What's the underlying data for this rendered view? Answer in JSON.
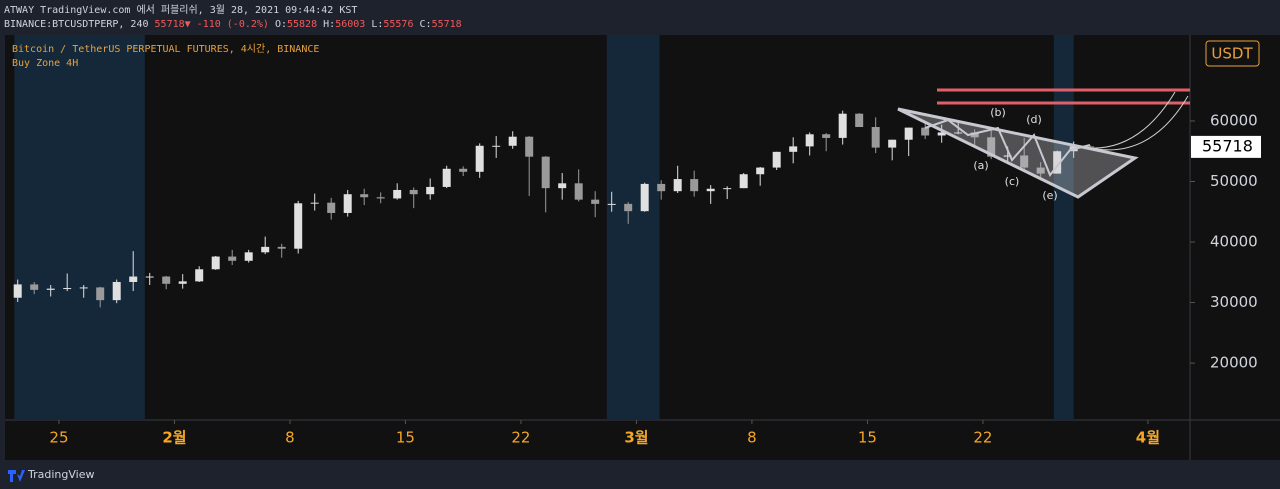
{
  "header": {
    "line1": "ATWAY TradingView.com 에서 퍼블리쉬, 3월 28, 2021 09:44:42 KST",
    "symbol": "BINANCE:BTCUSDTPERP, 240",
    "change": "55718▼ -110 (-0.2%)",
    "ohlc": [
      {
        "key": "O:",
        "value": "55828"
      },
      {
        "key": "H:",
        "value": "56003"
      },
      {
        "key": "L:",
        "value": "55576"
      },
      {
        "key": "C:",
        "value": "55718"
      }
    ]
  },
  "footer": {
    "brand": "TradingView"
  },
  "chart_data": {
    "type": "candlestick",
    "legend": [
      "Bitcoin / TetherUS PERPETUAL FUTURES, 4시간, BINANCE",
      "Buy Zone 4H"
    ],
    "currency": "USDT",
    "price_label": 55718,
    "up_color": "#e0e0e0",
    "down_color": "#9a9a9a",
    "zone_color": "#15283a",
    "annotations": [
      "(a)",
      "(b)",
      "(c)",
      "(d)",
      "(e)"
    ],
    "buy_zones": [
      [
        22.3,
        30.2
      ],
      [
        58.2,
        61.4
      ],
      [
        85.3,
        86.5
      ]
    ],
    "xlim": [
      21.73,
      93.55
    ],
    "xticks": [
      {
        "value": 25,
        "label": "25"
      },
      {
        "value": 32,
        "label": "2월"
      },
      {
        "value": 39,
        "label": "8"
      },
      {
        "value": 46,
        "label": "15"
      },
      {
        "value": 53,
        "label": "22"
      },
      {
        "value": 60,
        "label": "3월"
      },
      {
        "value": 67,
        "label": "8"
      },
      {
        "value": 74,
        "label": "15"
      },
      {
        "value": 81,
        "label": "22"
      },
      {
        "value": 91,
        "label": "4월"
      }
    ],
    "ylim": [
      10600,
      74200
    ],
    "yticks": [
      20000,
      30000,
      40000,
      50000,
      60000
    ],
    "x": [
      22,
      23,
      24,
      25,
      26,
      27,
      28,
      29,
      30,
      31,
      32,
      33,
      34,
      35,
      36,
      37,
      38,
      39,
      40,
      41,
      42,
      43,
      44,
      45,
      46,
      47,
      48,
      49,
      50,
      51,
      52,
      53,
      54,
      55,
      56,
      57,
      58,
      59,
      60,
      61,
      62,
      63,
      64,
      65,
      66,
      67,
      68,
      69,
      70,
      71,
      72,
      73,
      74,
      75,
      76,
      77,
      78,
      79,
      80,
      81,
      82,
      83,
      84,
      85,
      86,
      87
    ],
    "open": [
      30800,
      33000,
      32100,
      32300,
      32400,
      32500,
      30400,
      33400,
      34300,
      34300,
      33100,
      33500,
      35500,
      37600,
      36900,
      38300,
      39200,
      38900,
      46400,
      46500,
      44800,
      47900,
      47400,
      47200,
      48600,
      47900,
      49100,
      52100,
      51600,
      55900,
      55900,
      57400,
      54100,
      48900,
      49700,
      47000,
      46300,
      46300,
      45100,
      49600,
      48400,
      50400,
      48400,
      48800,
      48900,
      51200,
      52300,
      54900,
      55800,
      57800,
      57200,
      61200,
      59000,
      55600,
      56900,
      58900,
      57600,
      58100,
      58100,
      57300,
      54100,
      54300,
      52300,
      51300,
      55000,
      55800
    ],
    "high": [
      33800,
      33400,
      32900,
      34800,
      32900,
      32600,
      33800,
      38500,
      34900,
      34400,
      34700,
      36000,
      37700,
      38700,
      38700,
      40900,
      39700,
      46800,
      48000,
      47300,
      48600,
      48800,
      48200,
      49700,
      49000,
      50500,
      52600,
      52500,
      56300,
      57500,
      58300,
      57500,
      54200,
      51400,
      52000,
      48400,
      48300,
      46600,
      49800,
      50200,
      52600,
      51800,
      49400,
      49200,
      51400,
      52400,
      54900,
      57300,
      58100,
      58000,
      61700,
      61300,
      60600,
      56900,
      58900,
      60000,
      59400,
      59800,
      58600,
      58400,
      55800,
      57200,
      53200,
      55100,
      56600,
      56003
    ],
    "low": [
      30100,
      31400,
      31000,
      31900,
      30800,
      29200,
      29900,
      31900,
      32900,
      32200,
      32300,
      33400,
      35400,
      36200,
      36600,
      38000,
      37400,
      38100,
      45200,
      43700,
      44200,
      46100,
      46400,
      47000,
      45600,
      47000,
      48900,
      50900,
      50600,
      53900,
      55400,
      47600,
      44900,
      47000,
      46700,
      44100,
      45000,
      43000,
      45000,
      47000,
      48100,
      47500,
      46300,
      47100,
      48900,
      49300,
      51900,
      53000,
      54300,
      55000,
      56100,
      59000,
      54700,
      53500,
      54200,
      57000,
      56400,
      57800,
      55800,
      53700,
      53000,
      51700,
      50400,
      51300,
      53900,
      55576
    ],
    "close": [
      33000,
      32100,
      32300,
      32400,
      32500,
      30400,
      33400,
      34300,
      34300,
      33100,
      33500,
      35500,
      37600,
      36900,
      38300,
      39200,
      38900,
      46400,
      46500,
      44800,
      47900,
      47400,
      47200,
      48600,
      47900,
      49100,
      52100,
      51600,
      55900,
      55900,
      57400,
      54100,
      48900,
      49700,
      47000,
      46300,
      46300,
      45100,
      49600,
      48400,
      50400,
      48400,
      48800,
      48900,
      51200,
      52300,
      54900,
      55800,
      57800,
      57200,
      61200,
      59000,
      55600,
      56900,
      58900,
      57600,
      58100,
      58100,
      57300,
      54100,
      54300,
      52300,
      51300,
      55000,
      55800,
      55718
    ]
  }
}
